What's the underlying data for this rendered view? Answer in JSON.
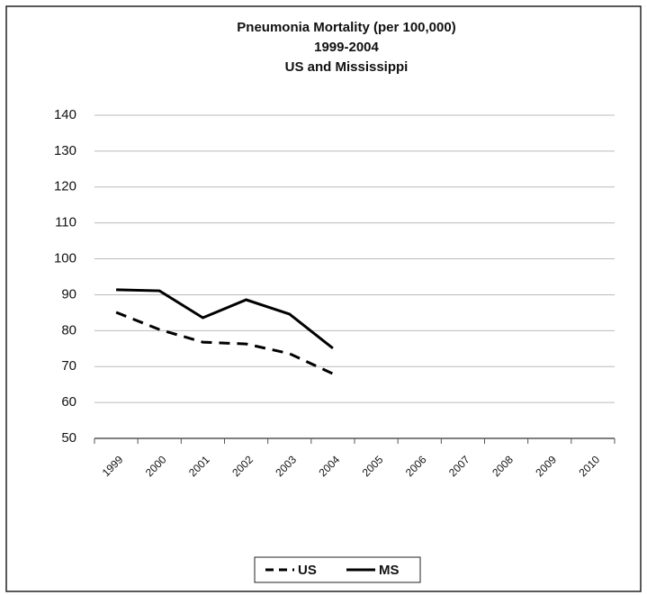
{
  "chart_data": {
    "type": "line",
    "title": [
      "Pneumonia Mortality (per 100,000)",
      "1999-2004",
      "US and Mississippi"
    ],
    "categories": [
      "1999",
      "2000",
      "2001",
      "2002",
      "2003",
      "2004",
      "2005",
      "2006",
      "2007",
      "2008",
      "2009",
      "2010"
    ],
    "series": [
      {
        "name": "US",
        "color": "#000000",
        "dashed": true,
        "values": [
          85.1,
          80.3,
          76.8,
          76.3,
          73.6,
          68.0,
          null,
          null,
          null,
          null,
          null,
          null
        ]
      },
      {
        "name": "MS",
        "color": "#000000",
        "dashed": false,
        "values": [
          91.4,
          91.1,
          83.6,
          88.6,
          84.6,
          75.1,
          null,
          null,
          null,
          null,
          null,
          null
        ]
      }
    ],
    "ylim": [
      50,
      140
    ],
    "yticks": [
      50,
      60,
      70,
      80,
      90,
      100,
      110,
      120,
      130,
      140
    ],
    "grid": true,
    "legend": "bottom"
  }
}
